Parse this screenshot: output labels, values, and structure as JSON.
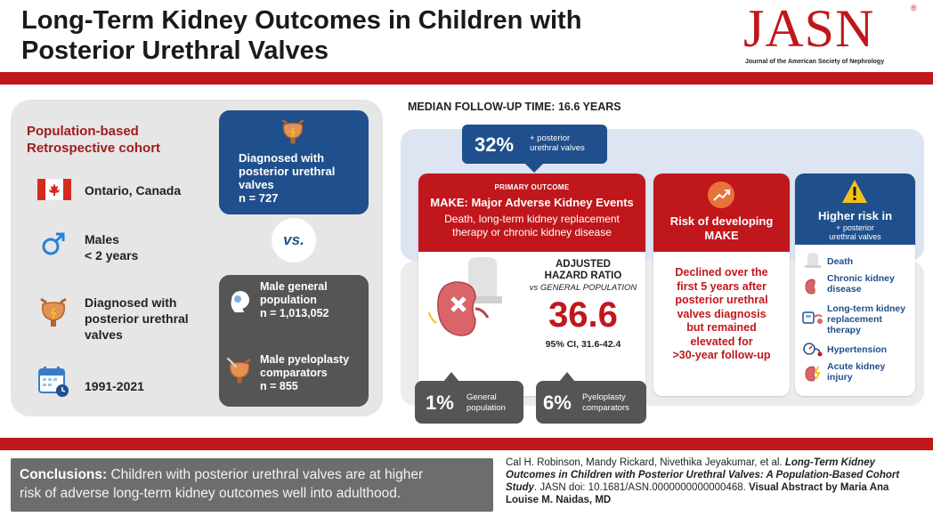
{
  "header": {
    "title_line1": "Long-Term Kidney Outcomes in Children with",
    "title_line2": "Posterior Urethral Valves",
    "logo": "JASN",
    "logo_reg": "®",
    "logo_subtitle": "Journal of the American Society of Nephrology"
  },
  "cohort": {
    "title_line1": "Population-based",
    "title_line2": "Retrospective cohort",
    "location": "Ontario, Canada",
    "sex_line1": "Males",
    "sex_line2": "< 2 years",
    "diagnosis_line1": "Diagnosed with",
    "diagnosis_line2": "posterior urethral",
    "diagnosis_line3": "valves",
    "years": "1991-2021"
  },
  "groups": {
    "puv_line1": "Diagnosed with",
    "puv_line2": "posterior urethral",
    "puv_line3": "valves",
    "puv_n": "n = 727",
    "vs": "vs.",
    "general_line1": "Male general",
    "general_line2": "population",
    "general_n": "n = 1,013,052",
    "pyelo_line1": "Male pyeloplasty",
    "pyelo_line2": "comparators",
    "pyelo_n": "n = 855"
  },
  "results": {
    "follow_up": "MEDIAN FOLLOW-UP TIME: 16.6 YEARS",
    "puv_percent": "32%",
    "puv_percent_label_line1": "+ posterior",
    "puv_percent_label_line2": "urethral valves",
    "primary_outcome": "PRIMARY OUTCOME",
    "make_title": "MAKE: Major Adverse Kidney Events",
    "make_def_line1": "Death, long-term kidney replacement",
    "make_def_line2": "therapy or chronic kidney disease",
    "ahr_label_line1": "ADJUSTED",
    "ahr_label_line2": "HAZARD RATIO",
    "ahr_vs": "vs GENERAL POPULATION",
    "ahr_value": "36.6",
    "ahr_ci": "95% CI, 31.6-42.4",
    "general_percent": "1%",
    "general_label_line1": "General",
    "general_label_line2": "population",
    "pyelo_percent": "6%",
    "pyelo_label_line1": "Pyeloplasty",
    "pyelo_label_line2": "comparators"
  },
  "risk": {
    "title_line1": "Risk of developing",
    "title_line2": "MAKE",
    "text_line1": "Declined over the",
    "text_line2": "first 5 years after",
    "text_line3": "posterior urethral",
    "text_line4": "valves diagnosis",
    "text_line5": "but remained",
    "text_line6": "elevated for",
    "text_line7": ">30-year follow-up"
  },
  "higher_risk": {
    "title": "Higher risk in",
    "subtitle_line1": "+ posterior",
    "subtitle_line2": "urethral valves",
    "items": {
      "death": "Death",
      "ckd_line1": "Chronic kidney",
      "ckd_line2": "disease",
      "krt_line1": "Long-term kidney",
      "krt_line2": "replacement",
      "krt_line3": "therapy",
      "htn": "Hypertension",
      "aki_line1": "Acute kidney",
      "aki_line2": "injury"
    }
  },
  "footer": {
    "conclusion_label": "Conclusions:",
    "conclusion_text1": " Children with posterior urethral valves are at higher",
    "conclusion_text2": "risk of adverse long-term kidney outcomes well into adulthood.",
    "citation_authors": "Cal H. Robinson, Mandy Rickard, Nivethika Jeyakumar, et al. ",
    "citation_title": "Long-Term Kidney Outcomes in Children with Posterior Urethral Valves: A Population-Based Cohort Study",
    "citation_journal": ". JASN doi: 10.1681/ASN.0000000000000468. ",
    "citation_credit": "Visual Abstract by Maria Ana Louise M. Naidas, MD"
  },
  "colors": {
    "brand_red": "#c0171c",
    "navy": "#1f4f8c",
    "dark_gray": "#555555",
    "panel_gray": "#e6e6e6"
  }
}
